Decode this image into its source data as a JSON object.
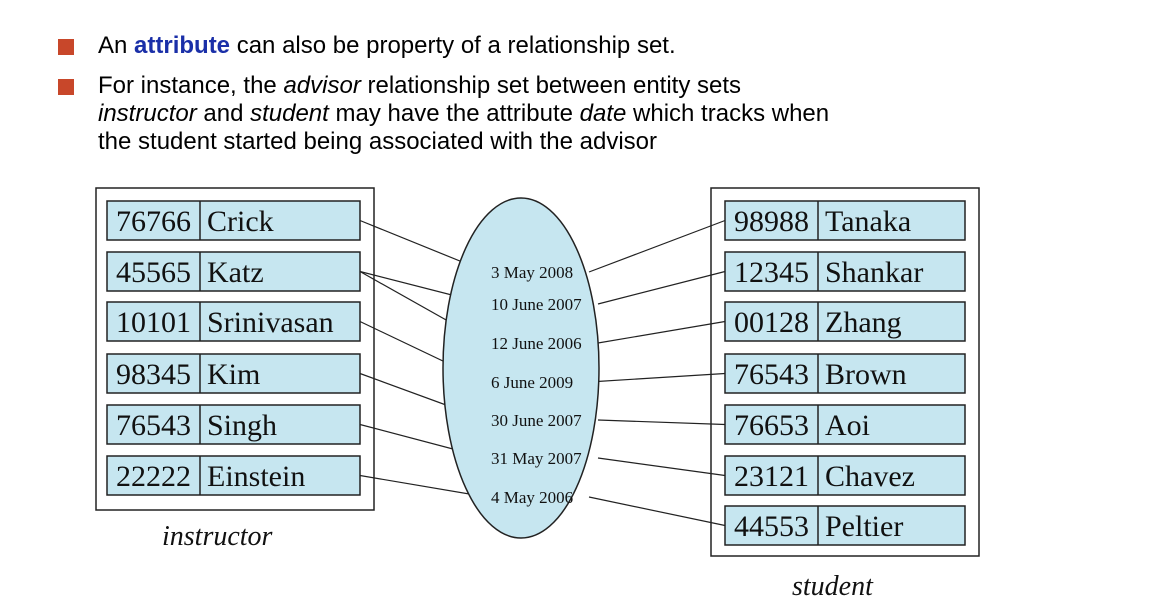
{
  "bullets": [
    {
      "pre": "An ",
      "keyword": "attribute",
      "post": " can also be property of a relationship set."
    },
    {
      "line1_a": "For instance, the ",
      "line1_b": "advisor",
      "line1_c": " relationship set between entity sets",
      "line2_a": "instructor",
      "line2_b": " and ",
      "line2_c": "student",
      "line2_d": " may have the attribute ",
      "line2_e": "date",
      "line2_f": " which tracks when",
      "line3": "the student started being associated with the advisor"
    }
  ],
  "diagram": {
    "instructor_label": "instructor",
    "student_label": "student",
    "instructors": [
      {
        "id": "76766",
        "name": "Crick"
      },
      {
        "id": "45565",
        "name": "Katz"
      },
      {
        "id": "10101",
        "name": "Srinivasan"
      },
      {
        "id": "98345",
        "name": "Kim"
      },
      {
        "id": "76543",
        "name": "Singh"
      },
      {
        "id": "22222",
        "name": "Einstein"
      }
    ],
    "students": [
      {
        "id": "98988",
        "name": "Tanaka"
      },
      {
        "id": "12345",
        "name": "Shankar"
      },
      {
        "id": "00128",
        "name": "Zhang"
      },
      {
        "id": "76543",
        "name": "Brown"
      },
      {
        "id": "76653",
        "name": "Aoi"
      },
      {
        "id": "23121",
        "name": "Chavez"
      },
      {
        "id": "44553",
        "name": "Peltier"
      }
    ],
    "dates": [
      "3 May 2008",
      "10 June 2007",
      "12 June 2006",
      "6 June 2009",
      "30 June 2007",
      "31 May 2007",
      "4 May 2006"
    ],
    "links": [
      {
        "instructor": 0,
        "date": 0,
        "student": 0
      },
      {
        "instructor": 1,
        "date": 1,
        "student": 1
      },
      {
        "instructor": 1,
        "date": 2,
        "student": 2
      },
      {
        "instructor": 2,
        "date": 3,
        "student": 3
      },
      {
        "instructor": 3,
        "date": 4,
        "student": 4
      },
      {
        "instructor": 4,
        "date": 5,
        "student": 5
      },
      {
        "instructor": 5,
        "date": 6,
        "student": 6
      }
    ],
    "colors": {
      "cell_fill": "#c6e6f0",
      "ellipse_fill": "#c6e6f0",
      "bullet": "#c8472a",
      "keyword": "#1a2fa8"
    }
  }
}
